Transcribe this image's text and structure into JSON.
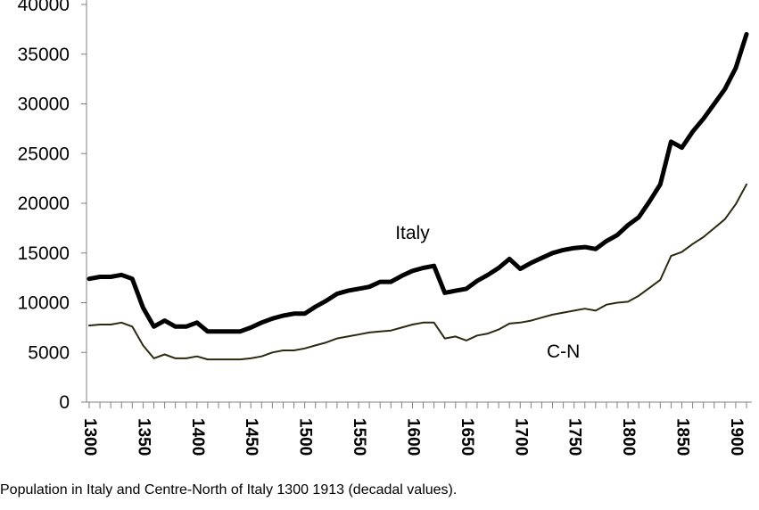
{
  "chart_data": {
    "type": "line",
    "title": "",
    "xlabel": "",
    "ylabel": "",
    "xlim": [
      1300,
      1913
    ],
    "ylim": [
      0,
      40000
    ],
    "yticks": [
      0,
      5000,
      10000,
      15000,
      20000,
      25000,
      30000,
      35000,
      40000
    ],
    "xticks": [
      1300,
      1350,
      1400,
      1450,
      1500,
      1550,
      1600,
      1650,
      1700,
      1750,
      1800,
      1850,
      1900
    ],
    "grid": false,
    "legend": "none",
    "x": [
      1300,
      1310,
      1320,
      1330,
      1340,
      1350,
      1360,
      1370,
      1380,
      1390,
      1400,
      1410,
      1420,
      1430,
      1440,
      1450,
      1460,
      1470,
      1480,
      1490,
      1500,
      1510,
      1520,
      1530,
      1540,
      1550,
      1560,
      1570,
      1580,
      1590,
      1600,
      1610,
      1620,
      1630,
      1640,
      1650,
      1660,
      1670,
      1680,
      1690,
      1700,
      1710,
      1720,
      1730,
      1740,
      1750,
      1760,
      1770,
      1780,
      1790,
      1800,
      1810,
      1820,
      1830,
      1840,
      1850,
      1860,
      1870,
      1880,
      1890,
      1900,
      1910
    ],
    "series": [
      {
        "name": "Italy",
        "color": "#000000",
        "values": [
          12400,
          12600,
          12600,
          12800,
          12400,
          9500,
          7600,
          8200,
          7600,
          7600,
          8000,
          7100,
          7100,
          7100,
          7100,
          7500,
          8000,
          8400,
          8700,
          8900,
          8900,
          9600,
          10200,
          10900,
          11200,
          11400,
          11600,
          12100,
          12100,
          12700,
          13200,
          13500,
          13700,
          11000,
          11200,
          11400,
          12200,
          12800,
          13500,
          14400,
          13400,
          14000,
          14500,
          15000,
          15300,
          15500,
          15600,
          15400,
          16200,
          16800,
          17800,
          18600,
          20200,
          21900,
          26200,
          25600,
          27200,
          28500,
          30000,
          31500,
          33600,
          37000
        ]
      },
      {
        "name": "C-N",
        "color": "#2b2a10",
        "values": [
          7700,
          7800,
          7800,
          8000,
          7600,
          5700,
          4400,
          4800,
          4400,
          4400,
          4600,
          4300,
          4300,
          4300,
          4300,
          4400,
          4600,
          5000,
          5200,
          5200,
          5400,
          5700,
          6000,
          6400,
          6600,
          6800,
          7000,
          7100,
          7200,
          7500,
          7800,
          8000,
          8000,
          6400,
          6600,
          6200,
          6700,
          6900,
          7300,
          7900,
          8000,
          8200,
          8500,
          8800,
          9000,
          9200,
          9400,
          9200,
          9800,
          10000,
          10100,
          10700,
          11500,
          12300,
          14700,
          15100,
          15900,
          16600,
          17500,
          18400,
          19900,
          21900
        ]
      }
    ],
    "annotations": [
      {
        "text": "Italy",
        "x": 1600,
        "y": 16400
      },
      {
        "text": "C-N",
        "x": 1740,
        "y": 4500
      }
    ]
  },
  "caption": "Population in Italy and Centre-North of Italy 1300 1913 (decadal values)."
}
